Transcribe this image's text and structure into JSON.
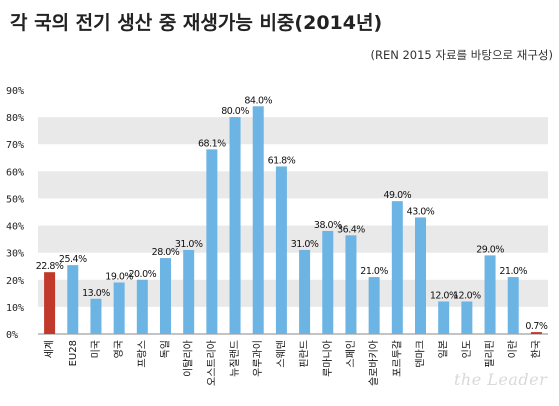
{
  "title": "각 국의 전기 생산 중 재생가능 비중(2014년)",
  "subtitle": "(REN 2015 자료를 바탕으로 재구성)",
  "watermark": "the Leader",
  "colors": {
    "bar": "#6cb4e4",
    "highlight": "#c0392b",
    "band": "#e9e9e9"
  },
  "chart_data": {
    "type": "bar",
    "title": "각 국의 전기 생산 중 재생가능 비중(2014년)",
    "xlabel": "",
    "ylabel": "",
    "ylim": [
      0,
      90
    ],
    "yticks": [
      "0%",
      "10%",
      "20%",
      "30%",
      "40%",
      "50%",
      "60%",
      "70%",
      "80%",
      "90%"
    ],
    "categories": [
      "세계",
      "EU28",
      "미국",
      "영국",
      "프랑스",
      "독일",
      "이탈리아",
      "오스트리아",
      "뉴질랜드",
      "우루과이",
      "스웨덴",
      "핀란드",
      "루마니아",
      "스페인",
      "슬로바키아",
      "포르투갈",
      "덴마크",
      "일본",
      "인도",
      "필리핀",
      "이란",
      "한국"
    ],
    "values": [
      22.8,
      25.4,
      13.0,
      19.0,
      20.0,
      28.0,
      31.0,
      68.1,
      80.0,
      84.0,
      61.8,
      31.0,
      38.0,
      36.4,
      21.0,
      49.0,
      43.0,
      12.0,
      12.0,
      29.0,
      21.0,
      0.7
    ],
    "labels": [
      "22.8%",
      "25.4%",
      "13.0%",
      "19.0%",
      "20.0%",
      "28.0%",
      "31.0%",
      "68.1%",
      "80.0%",
      "84.0%",
      "61.8%",
      "31.0%",
      "38.0%",
      "36.4%",
      "21.0%",
      "49.0%",
      "43.0%",
      "12.0%",
      "12.0%",
      "29.0%",
      "21.0%",
      "0.7%"
    ],
    "highlighted": [
      "세계",
      "한국"
    ],
    "grid": "alternating horizontal bands",
    "legend": "none"
  }
}
